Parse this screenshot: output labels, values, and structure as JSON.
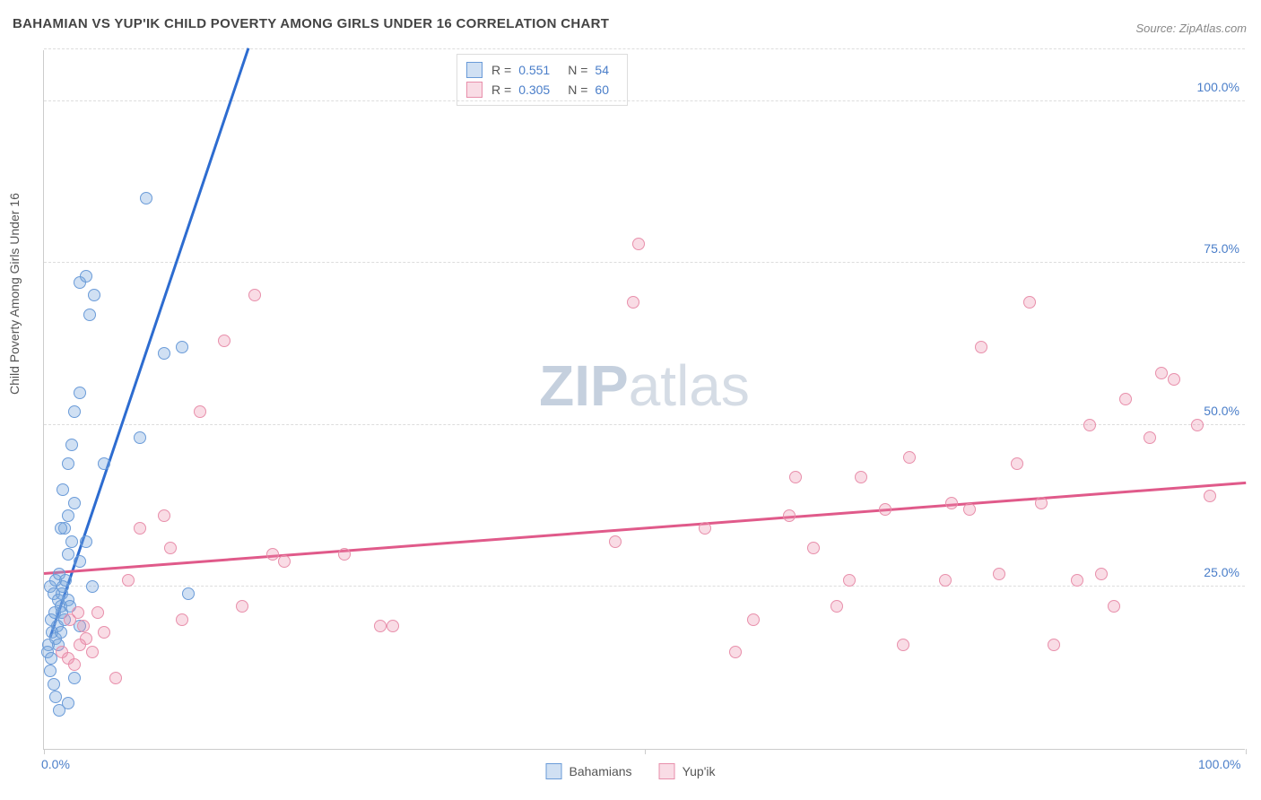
{
  "title": "BAHAMIAN VS YUP'IK CHILD POVERTY AMONG GIRLS UNDER 16 CORRELATION CHART",
  "source": "Source: ZipAtlas.com",
  "y_axis_label": "Child Poverty Among Girls Under 16",
  "watermark_bold": "ZIP",
  "watermark_light": "atlas",
  "chart": {
    "type": "scatter",
    "xlim": [
      0,
      100
    ],
    "ylim": [
      0,
      108
    ],
    "x_ticks": [
      0,
      50,
      100
    ],
    "x_tick_labels": [
      "0.0%",
      "",
      "100.0%"
    ],
    "y_grid": [
      25,
      50,
      75,
      100,
      108
    ],
    "y_grid_labels": [
      "25.0%",
      "50.0%",
      "75.0%",
      "100.0%",
      ""
    ],
    "background_color": "#ffffff",
    "grid_color": "#dddddd",
    "axis_color": "#cccccc",
    "tick_label_color": "#4a7ec9",
    "marker_radius": 7,
    "series": [
      {
        "name": "Bahamians",
        "color_fill": "rgba(120,165,220,0.35)",
        "color_stroke": "#6a9bd8",
        "r_label": "R =",
        "r_value": "0.551",
        "n_label": "N =",
        "n_value": "54",
        "trend": {
          "x1": 0.5,
          "y1": 17,
          "x2": 17,
          "y2": 108,
          "color": "#2d6cd0",
          "width": 3
        },
        "points": [
          [
            0.5,
            25
          ],
          [
            0.8,
            24
          ],
          [
            1.0,
            26
          ],
          [
            1.2,
            23
          ],
          [
            1.4,
            22
          ],
          [
            0.6,
            20
          ],
          [
            0.9,
            21
          ],
          [
            1.1,
            19
          ],
          [
            1.3,
            27
          ],
          [
            1.5,
            24
          ],
          [
            0.7,
            18
          ],
          [
            1.0,
            17
          ],
          [
            1.6,
            25
          ],
          [
            1.8,
            26
          ],
          [
            2.0,
            23
          ],
          [
            0.4,
            16
          ],
          [
            0.3,
            15
          ],
          [
            0.6,
            14
          ],
          [
            1.2,
            16
          ],
          [
            1.4,
            18
          ],
          [
            1.7,
            20
          ],
          [
            2.2,
            22
          ],
          [
            0.5,
            12
          ],
          [
            0.8,
            10
          ],
          [
            1.0,
            8
          ],
          [
            1.3,
            6
          ],
          [
            2.0,
            7
          ],
          [
            2.5,
            11
          ],
          [
            3.0,
            19
          ],
          [
            1.5,
            21
          ],
          [
            2.0,
            30
          ],
          [
            2.3,
            32
          ],
          [
            2.0,
            36
          ],
          [
            2.5,
            38
          ],
          [
            1.7,
            34
          ],
          [
            1.4,
            34
          ],
          [
            3.0,
            29
          ],
          [
            3.5,
            32
          ],
          [
            4.0,
            25
          ],
          [
            1.6,
            40
          ],
          [
            2.0,
            44
          ],
          [
            2.3,
            47
          ],
          [
            2.5,
            52
          ],
          [
            3.0,
            55
          ],
          [
            5.0,
            44
          ],
          [
            3.8,
            67
          ],
          [
            4.2,
            70
          ],
          [
            3.0,
            72
          ],
          [
            3.5,
            73
          ],
          [
            8.0,
            48
          ],
          [
            10.0,
            61
          ],
          [
            11.5,
            62
          ],
          [
            8.5,
            85
          ],
          [
            12.0,
            24
          ]
        ]
      },
      {
        "name": "Yup'ik",
        "color_fill": "rgba(235,140,170,0.30)",
        "color_stroke": "#e88fab",
        "r_label": "R =",
        "r_value": "0.305",
        "n_label": "N =",
        "n_value": "60",
        "trend": {
          "x1": 0,
          "y1": 27,
          "x2": 100,
          "y2": 41,
          "color": "#e05a8a",
          "width": 2.5
        },
        "points": [
          [
            1.5,
            15
          ],
          [
            2.0,
            14
          ],
          [
            2.5,
            13
          ],
          [
            3.0,
            16
          ],
          [
            3.5,
            17
          ],
          [
            4.0,
            15
          ],
          [
            2.2,
            20
          ],
          [
            2.8,
            21
          ],
          [
            3.3,
            19
          ],
          [
            4.5,
            21
          ],
          [
            5.0,
            18
          ],
          [
            6.0,
            11
          ],
          [
            7.0,
            26
          ],
          [
            8.0,
            34
          ],
          [
            10.0,
            36
          ],
          [
            10.5,
            31
          ],
          [
            11.5,
            20
          ],
          [
            13.0,
            52
          ],
          [
            15.0,
            63
          ],
          [
            16.5,
            22
          ],
          [
            17.5,
            70
          ],
          [
            19.0,
            30
          ],
          [
            20.0,
            29
          ],
          [
            25.0,
            30
          ],
          [
            28.0,
            19
          ],
          [
            29.0,
            19
          ],
          [
            47.5,
            32
          ],
          [
            49.0,
            69
          ],
          [
            49.5,
            78
          ],
          [
            55.0,
            34
          ],
          [
            57.5,
            15
          ],
          [
            59.0,
            20
          ],
          [
            62.0,
            36
          ],
          [
            62.5,
            42
          ],
          [
            64.0,
            31
          ],
          [
            66.0,
            22
          ],
          [
            67.0,
            26
          ],
          [
            68.0,
            42
          ],
          [
            70.0,
            37
          ],
          [
            71.5,
            16
          ],
          [
            72.0,
            45
          ],
          [
            75.0,
            26
          ],
          [
            75.5,
            38
          ],
          [
            77.0,
            37
          ],
          [
            78.0,
            62
          ],
          [
            79.5,
            27
          ],
          [
            81.0,
            44
          ],
          [
            82.0,
            69
          ],
          [
            83.0,
            38
          ],
          [
            84.0,
            16
          ],
          [
            86.0,
            26
          ],
          [
            87.0,
            50
          ],
          [
            88.0,
            27
          ],
          [
            89.0,
            22
          ],
          [
            90.0,
            54
          ],
          [
            92.0,
            48
          ],
          [
            93.0,
            58
          ],
          [
            94.0,
            57
          ],
          [
            96.0,
            50
          ],
          [
            97.0,
            39
          ]
        ]
      }
    ]
  },
  "legend_bottom": [
    {
      "label": "Bahamians",
      "fill": "rgba(120,165,220,0.35)",
      "stroke": "#6a9bd8"
    },
    {
      "label": "Yup'ik",
      "fill": "rgba(235,140,170,0.30)",
      "stroke": "#e88fab"
    }
  ]
}
